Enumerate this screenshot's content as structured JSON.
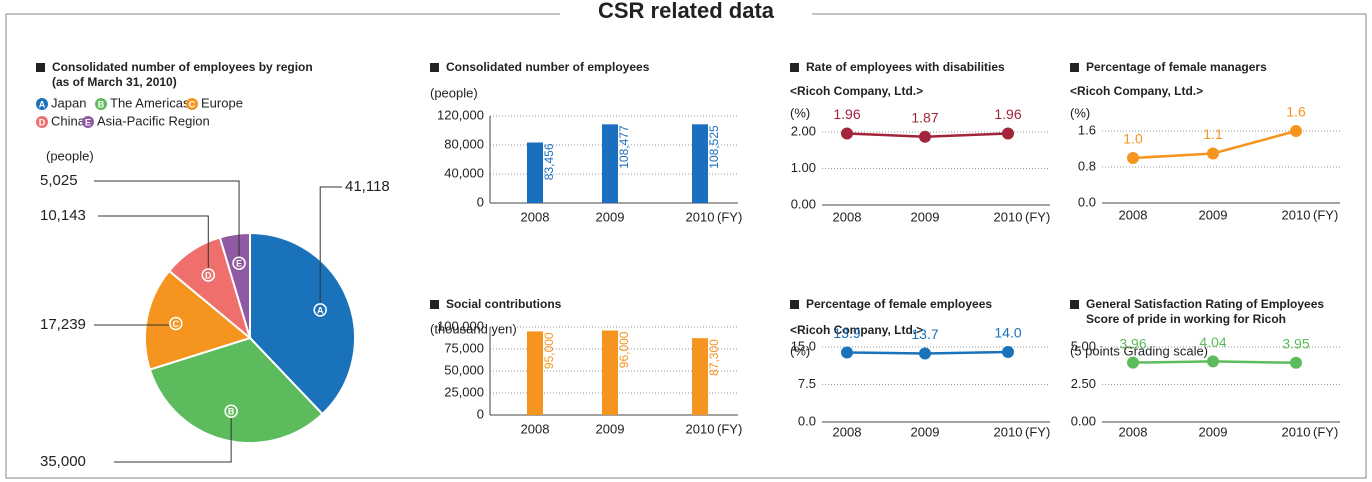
{
  "title": "CSR related data",
  "chart_data": [
    {
      "type": "pie",
      "title": "Consolidated number of employees by region",
      "subtitle": "(as of March 31, 2010)",
      "unit_label": "(people)",
      "markers": [
        "A",
        "B",
        "C",
        "D",
        "E"
      ],
      "labels": [
        "Japan",
        "The Americas",
        "Europe",
        "China",
        "Asia-Pacific Region"
      ],
      "values": [
        41118,
        35000,
        17239,
        10143,
        5025
      ],
      "value_labels": [
        "41,118",
        "35,000",
        "17,239",
        "10,143",
        "5,025"
      ],
      "colors": [
        "#1a72bb",
        "#5cbb5c",
        "#f5941e",
        "#ef6f6c",
        "#8f5aa3"
      ]
    },
    {
      "type": "bar",
      "title": "Consolidated number of employees",
      "y_label": "(people)",
      "x_label": "(FY)",
      "categories": [
        "2008",
        "2009",
        "2010"
      ],
      "values": [
        83456,
        108477,
        108525
      ],
      "value_labels": [
        "83,456",
        "108,477",
        "108,525"
      ],
      "color": "#1a6fbf",
      "ylim": [
        0,
        120000
      ],
      "yticks": [
        0,
        {
          "value": 40000,
          "label": "40,000"
        },
        {
          "value": 80000,
          "label": "80,000"
        },
        {
          "value": 120000,
          "label": "120,000"
        }
      ],
      "grid": true
    },
    {
      "type": "bar",
      "title": "Social contributions",
      "y_label": "(thousand yen)",
      "x_label": "(FY)",
      "categories": [
        "2008",
        "2009",
        "2010"
      ],
      "values": [
        95000,
        96000,
        87300
      ],
      "value_labels": [
        "95,000",
        "96,000",
        "87,300"
      ],
      "color": "#f5941e",
      "ylim": [
        0,
        100000
      ],
      "yticks": [
        0,
        {
          "value": 25000,
          "label": "25,000"
        },
        {
          "value": 50000,
          "label": "50,000"
        },
        {
          "value": 75000,
          "label": "75,000"
        },
        {
          "value": 100000,
          "label": "100,000"
        }
      ],
      "grid": true
    },
    {
      "type": "line",
      "title": "Rate of employees with disabilities",
      "note": "<Ricoh Company, Ltd.>",
      "y_label": "(%)",
      "x_label": "(FY)",
      "categories": [
        "2008",
        "2009",
        "2010"
      ],
      "values": [
        1.96,
        1.87,
        1.96
      ],
      "color": "#a3253b",
      "ylim": [
        0,
        2.4
      ],
      "yticks": [
        {
          "value": 0,
          "label": "0.00"
        },
        {
          "value": 1,
          "label": "1.00"
        },
        {
          "value": 2,
          "label": "2.00"
        }
      ],
      "grid": true
    },
    {
      "type": "line",
      "title": "Percentage of female managers",
      "note": "<Ricoh Company, Ltd.>",
      "y_label": "(%)",
      "x_label": "(FY)",
      "categories": [
        "2008",
        "2009",
        "2010"
      ],
      "values": [
        1.0,
        1.1,
        1.6
      ],
      "value_labels": [
        "1.0",
        "1.1",
        "1.6"
      ],
      "color": "#f5941e",
      "ylim": [
        0,
        1.9
      ],
      "yticks": [
        {
          "value": 0,
          "label": "0.0"
        },
        0.8,
        1.6
      ],
      "grid": true
    },
    {
      "type": "line",
      "title": "Percentage of female employees",
      "note": "<Ricoh Company, Ltd.>",
      "y_label": "(%)",
      "x_label": "(FY)",
      "categories": [
        "2008",
        "2009",
        "2010"
      ],
      "values": [
        13.9,
        13.7,
        14.0
      ],
      "value_labels": [
        "13.9",
        "13.7",
        "14.0"
      ],
      "color": "#1a72bb",
      "ylim": [
        0,
        18
      ],
      "yticks": [
        {
          "value": 0,
          "label": "0.0"
        },
        7.5,
        {
          "value": 15,
          "label": "15.0"
        }
      ],
      "grid": true
    },
    {
      "type": "line",
      "title": "General Satisfaction Rating of Employees",
      "subtitle": "Score of pride in working for Ricoh",
      "y_label": "(5 points Grading scale)",
      "x_label": "(FY)",
      "categories": [
        "2008",
        "2009",
        "2010"
      ],
      "values": [
        3.96,
        4.04,
        3.95
      ],
      "color": "#5cbb5c",
      "ylim": [
        0,
        5.8
      ],
      "yticks": [
        {
          "value": 0,
          "label": "0.00"
        },
        {
          "value": 2.5,
          "label": "2.50"
        },
        {
          "value": 5,
          "label": "5.00"
        }
      ],
      "grid": true
    }
  ]
}
